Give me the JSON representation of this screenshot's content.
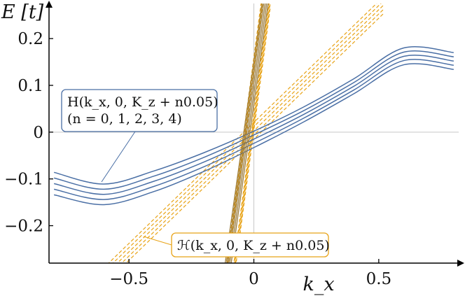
{
  "chart_data": {
    "type": "line",
    "xlabel": "k_x",
    "ylabel": "E [t]",
    "xlim": [
      -0.82,
      0.82
    ],
    "ylim": [
      -0.28,
      0.275
    ],
    "x_ticks": [
      -0.5,
      0,
      0.5
    ],
    "x_tick_labels": [
      "−0.5",
      "0",
      "0.5"
    ],
    "y_ticks": [
      -0.2,
      -0.1,
      0,
      0.1,
      0.2
    ],
    "y_tick_labels": [
      "−0.2",
      "−0.1",
      "0",
      "0.1",
      "0.2"
    ],
    "grid": false,
    "zero_lines": true,
    "colors": {
      "blue": "#4a6fa5",
      "orange": "#e8a317",
      "brown": "#9a7a3a",
      "zero_line": "#c8c8c8"
    },
    "annotations": [
      {
        "series_group": "H",
        "lines": [
          "H(k_x, 0, K_z + n0.05)",
          "(n = 0, 1, 2, 3, 4)"
        ],
        "color": "#4a6fa5"
      },
      {
        "series_group": "H_effective",
        "lines": [
          "ℋ(k_x, 0, K_z + n0.05)"
        ],
        "color": "#e8a317"
      }
    ],
    "series": [
      {
        "group": "H",
        "n": 0,
        "x": [
          -0.8,
          -0.6,
          -0.4,
          -0.2,
          0,
          0.2,
          0.4,
          0.6,
          0.8
        ],
        "y": [
          -0.086,
          -0.111,
          -0.083,
          -0.044,
          0.002,
          0.054,
          0.114,
          0.18,
          0.17
        ]
      },
      {
        "group": "H",
        "n": 1,
        "x": [
          -0.8,
          -0.6,
          -0.4,
          -0.2,
          0,
          0.2,
          0.4,
          0.6,
          0.8
        ],
        "y": [
          -0.098,
          -0.122,
          -0.094,
          -0.054,
          -0.006,
          0.046,
          0.106,
          0.171,
          0.161
        ]
      },
      {
        "group": "H",
        "n": 2,
        "x": [
          -0.8,
          -0.6,
          -0.4,
          -0.2,
          0,
          0.2,
          0.4,
          0.6,
          0.8
        ],
        "y": [
          -0.11,
          -0.133,
          -0.105,
          -0.064,
          -0.015,
          0.038,
          0.098,
          0.162,
          0.152
        ]
      },
      {
        "group": "H",
        "n": 3,
        "x": [
          -0.8,
          -0.6,
          -0.4,
          -0.2,
          0,
          0.2,
          0.4,
          0.6,
          0.8
        ],
        "y": [
          -0.122,
          -0.144,
          -0.116,
          -0.074,
          -0.024,
          0.03,
          0.09,
          0.153,
          0.143
        ]
      },
      {
        "group": "H",
        "n": 4,
        "x": [
          -0.8,
          -0.6,
          -0.4,
          -0.2,
          0,
          0.2,
          0.4,
          0.6,
          0.8
        ],
        "y": [
          -0.134,
          -0.155,
          -0.127,
          -0.084,
          -0.033,
          0.022,
          0.082,
          0.144,
          0.134
        ]
      }
    ]
  }
}
